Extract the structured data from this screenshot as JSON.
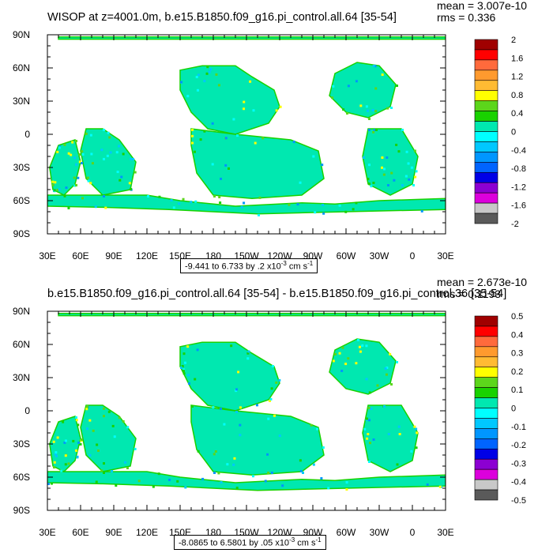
{
  "panels": [
    {
      "title": "WISOP at z=4001.0m, b.e15.B1850.f09_g16.pi_control.all.64 [35-54]",
      "mean": "mean = 3.007e-10",
      "rms": "rms = 0.336",
      "range_text": "-9.441 to 6.733 by .2 x10",
      "range_exp": "-3",
      "range_unit": " cm s",
      "range_unit_exp": "-1"
    },
    {
      "title": "b.e15.B1850.f09_g16.pi_control.all.64 [35-54] - b.e15.B1850.f09_g16.pi_control.36 [35-54]",
      "mean": "mean = 2.673e-10",
      "rms": "rms = 0.1193",
      "range_text": "-8.0865 to 6.5801 by .05 x10",
      "range_exp": "-3",
      "range_unit": " cm s",
      "range_unit_exp": "-1"
    }
  ],
  "chart_data": [
    {
      "type": "heatmap",
      "title": "WISOP at z=4001.0m, b.e15.B1850.f09_g16.pi_control.all.64 [35-54]",
      "x_tick_labels": [
        "30E",
        "60E",
        "90E",
        "120E",
        "150E",
        "180",
        "150W",
        "120W",
        "90W",
        "60W",
        "30W",
        "0",
        "30E"
      ],
      "x_ticks": [
        30,
        60,
        90,
        120,
        150,
        180,
        210,
        240,
        270,
        300,
        330,
        360,
        390
      ],
      "xlim": [
        30,
        390
      ],
      "y_tick_labels": [
        "90S",
        "60S",
        "30S",
        "0",
        "30N",
        "60N",
        "90N"
      ],
      "y_ticks": [
        -90,
        -60,
        -30,
        0,
        30,
        60,
        90
      ],
      "ylim": [
        -90,
        90
      ],
      "colorbar_labels": [
        "2",
        "1.6",
        "1.2",
        "0.8",
        "0.4",
        "0",
        "-0.4",
        "-0.8",
        "-1.2",
        "-1.6",
        "-2"
      ],
      "colorbar_colors": [
        "#a00000",
        "#ff0000",
        "#ff6a3c",
        "#ff9a2e",
        "#ffbb33",
        "#ffff00",
        "#5cd61b",
        "#19d200",
        "#00e8b0",
        "#00ffff",
        "#00c8ff",
        "#0096ff",
        "#0064ff",
        "#0000e6",
        "#8c00d2",
        "#dc00dc",
        "#c8c8c8",
        "#5a5a5a"
      ],
      "map_dominant_color": "#00e8b0"
    },
    {
      "type": "heatmap",
      "title": "b.e15.B1850.f09_g16.pi_control.all.64 [35-54] - b.e15.B1850.f09_g16.pi_control.36 [35-54]",
      "x_tick_labels": [
        "30E",
        "60E",
        "90E",
        "120E",
        "150E",
        "180",
        "150W",
        "120W",
        "90W",
        "60W",
        "30W",
        "0",
        "30E"
      ],
      "x_ticks": [
        30,
        60,
        90,
        120,
        150,
        180,
        210,
        240,
        270,
        300,
        330,
        360,
        390
      ],
      "xlim": [
        30,
        390
      ],
      "y_tick_labels": [
        "90S",
        "60S",
        "30S",
        "0",
        "30N",
        "60N",
        "90N"
      ],
      "y_ticks": [
        -90,
        -60,
        -30,
        0,
        30,
        60,
        90
      ],
      "ylim": [
        -90,
        90
      ],
      "colorbar_labels": [
        "0.5",
        "0.4",
        "0.3",
        "0.2",
        "0.1",
        "0",
        "-0.1",
        "-0.2",
        "-0.3",
        "-0.4",
        "-0.5"
      ],
      "colorbar_colors": [
        "#a00000",
        "#ff0000",
        "#ff6a3c",
        "#ff9a2e",
        "#ffbb33",
        "#ffff00",
        "#5cd61b",
        "#19d200",
        "#00e8b0",
        "#00ffff",
        "#00c8ff",
        "#0096ff",
        "#0064ff",
        "#0000e6",
        "#8c00d2",
        "#dc00dc",
        "#c8c8c8",
        "#5a5a5a"
      ],
      "map_dominant_color": "#00e8b0"
    }
  ]
}
